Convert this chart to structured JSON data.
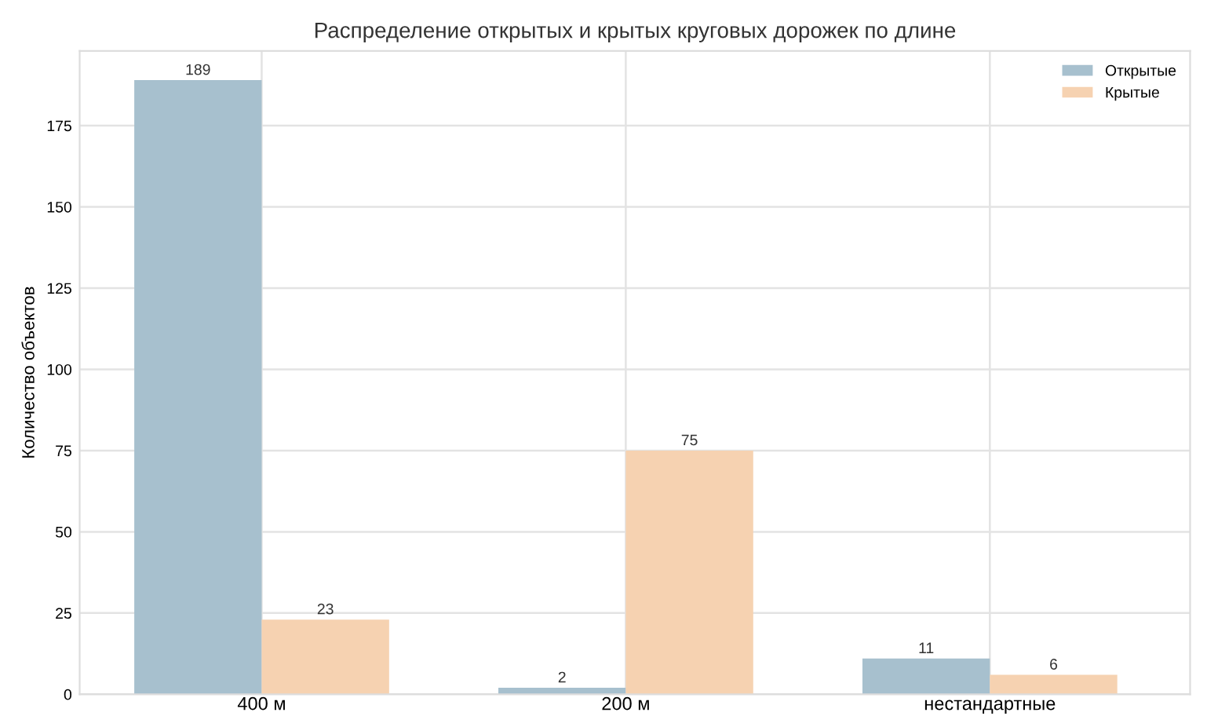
{
  "chart_data": {
    "type": "bar",
    "title": "Распределение открытых и крытых круговых дорожек по длине",
    "ylabel": "Количество объектов",
    "categories": [
      "400 м",
      "200 м",
      "нестандартные"
    ],
    "series": [
      {
        "name": "Открытые",
        "color": "#a7c0ce",
        "values": [
          189,
          2,
          11
        ]
      },
      {
        "name": "Крытые",
        "color": "#f6d2b1",
        "values": [
          23,
          75,
          6
        ]
      }
    ],
    "ylim": [
      0,
      198
    ],
    "yticks": [
      0,
      25,
      50,
      75,
      100,
      125,
      150,
      175
    ],
    "grid": true,
    "legend": "top right",
    "data_labels": true
  }
}
